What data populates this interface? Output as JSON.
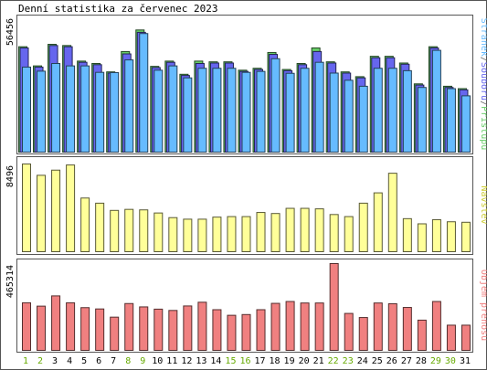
{
  "title": "Denní statistika za červenec 2023",
  "colors": {
    "accesses": "#66cc66",
    "files": "#6666ee",
    "pages": "#66bbff",
    "visits": "#ffff99",
    "transfer": "#f08080",
    "weekend_day": "#66aa00",
    "weekday_day": "#000000",
    "border": "#555555"
  },
  "chart_data": [
    {
      "type": "bar",
      "panel": "hits",
      "ymax_label": "56456",
      "ylim": [
        0,
        56456
      ],
      "legend": [
        "Přístupů",
        "Souborů",
        "Stránek"
      ],
      "categories": [
        "1",
        "2",
        "3",
        "4",
        "5",
        "6",
        "7",
        "8",
        "9",
        "10",
        "11",
        "12",
        "13",
        "14",
        "15",
        "16",
        "17",
        "18",
        "19",
        "20",
        "21",
        "22",
        "23",
        "24",
        "25",
        "26",
        "27",
        "28",
        "29",
        "30",
        "31"
      ],
      "weekend": [
        true,
        true,
        false,
        false,
        false,
        false,
        false,
        true,
        true,
        false,
        false,
        false,
        false,
        false,
        true,
        true,
        false,
        false,
        false,
        false,
        false,
        true,
        true,
        false,
        false,
        false,
        false,
        false,
        true,
        true,
        false
      ],
      "series": [
        {
          "name": "Přístupů",
          "values": [
            44000,
            36000,
            45000,
            44500,
            38000,
            37000,
            33500,
            42000,
            51000,
            35800,
            38000,
            32500,
            38000,
            37700,
            37700,
            34200,
            35000,
            41600,
            34500,
            37000,
            43500,
            37700,
            33500,
            31500,
            40000,
            40000,
            37200,
            28500,
            44000,
            27500,
            26500
          ]
        },
        {
          "name": "Souborů",
          "values": [
            43500,
            35500,
            44500,
            44000,
            37500,
            36500,
            33000,
            41000,
            50000,
            35300,
            37500,
            32000,
            37000,
            37200,
            37200,
            33700,
            34500,
            40800,
            34000,
            36500,
            42000,
            37200,
            33000,
            31000,
            39400,
            39400,
            36700,
            28000,
            43500,
            27000,
            26000
          ]
        },
        {
          "name": "Stránek",
          "values": [
            35500,
            33800,
            37000,
            36000,
            36000,
            33300,
            33200,
            38500,
            49500,
            34200,
            36000,
            31000,
            35000,
            35000,
            35000,
            33300,
            33700,
            39000,
            32900,
            35000,
            37500,
            33000,
            30000,
            27500,
            35000,
            35000,
            34000,
            27000,
            42500,
            26500,
            23500
          ]
        }
      ]
    },
    {
      "type": "bar",
      "panel": "visits",
      "ymax_label": "8496",
      "ylim": [
        0,
        8496
      ],
      "legend": [
        "Návštěv"
      ],
      "categories": [
        "1",
        "2",
        "3",
        "4",
        "5",
        "6",
        "7",
        "8",
        "9",
        "10",
        "11",
        "12",
        "13",
        "14",
        "15",
        "16",
        "17",
        "18",
        "19",
        "20",
        "21",
        "22",
        "23",
        "24",
        "25",
        "26",
        "27",
        "28",
        "29",
        "30",
        "31"
      ],
      "series": [
        {
          "name": "Návštěv",
          "values": [
            8496,
            7400,
            7900,
            8400,
            5200,
            4700,
            4000,
            4100,
            4050,
            3750,
            3300,
            3150,
            3150,
            3350,
            3400,
            3400,
            3800,
            3700,
            4200,
            4200,
            4150,
            3600,
            3400,
            4700,
            5700,
            7600,
            3200,
            2700,
            3100,
            2900,
            2850
          ]
        }
      ]
    },
    {
      "type": "bar",
      "panel": "transfer",
      "ymax_label": "465314",
      "ylim": [
        0,
        465314
      ],
      "legend": [
        "Objem přenosu"
      ],
      "categories": [
        "1",
        "2",
        "3",
        "4",
        "5",
        "6",
        "7",
        "8",
        "9",
        "10",
        "11",
        "12",
        "13",
        "14",
        "15",
        "16",
        "17",
        "18",
        "19",
        "20",
        "21",
        "22",
        "23",
        "24",
        "25",
        "26",
        "27",
        "28",
        "29",
        "30",
        "31"
      ],
      "series": [
        {
          "name": "Objem přenosu",
          "values": [
            255000,
            237000,
            292000,
            255000,
            229000,
            222000,
            178000,
            251000,
            233000,
            221000,
            214000,
            238000,
            258000,
            218000,
            188000,
            192000,
            218000,
            252000,
            262000,
            254000,
            254000,
            465314,
            198000,
            176000,
            254000,
            250000,
            230000,
            162000,
            262000,
            135000,
            135000
          ]
        }
      ]
    }
  ]
}
